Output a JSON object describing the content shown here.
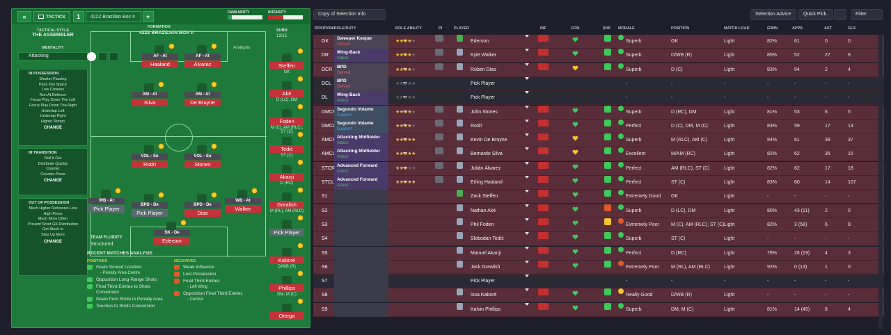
{
  "header": {
    "back": "«",
    "tab": "TACTICS",
    "slot": "1",
    "tactic_name": "4222 Brazilian Box II",
    "add": "+",
    "familiarity": "FAMILIARITY",
    "intensity": "INTENSITY"
  },
  "left": {
    "style_label": "TACTICAL STYLE",
    "style_value": "THE ASSEMBLER",
    "mentality_label": "MENTALITY",
    "mentality_value": "Attacking",
    "in_possession": {
      "title": "IN POSSESSION",
      "items": [
        "Shorter Passing",
        "Pass Into Space",
        "Low Crosses",
        "Run At Defence",
        "Focus Play Down The Left",
        "Focus Play Down The Right",
        "Underlap Left",
        "Underlap Right",
        "Higher Tempo"
      ],
      "change": "CHANGE"
    },
    "in_transition": {
      "title": "IN TRANSITION",
      "items": [
        "Roll It Out",
        "Distribute Quickly",
        "Counter",
        "Counter-Press"
      ],
      "change": "CHANGE"
    },
    "out_of_possession": {
      "title": "OUT OF POSSESSION",
      "items": [
        "Much Higher Defensive Line",
        "High Press",
        "Much More Often",
        "Prevent Short GK Distribution",
        "Get Stuck In",
        "Step Up More"
      ],
      "change": "CHANGE"
    }
  },
  "formation": {
    "label": "FORMATION",
    "name": "4222 BRAZILIAN BOX II",
    "subs_label": "SUBS:",
    "subs_value": "12/15",
    "analysis": "Analysis",
    "fluidity_label": "TEAM FLUIDITY",
    "fluidity_value": "Structured"
  },
  "pitch_players": [
    {
      "role": "AF - At",
      "name": "Haaland"
    },
    {
      "role": "AF - At",
      "name": "Álvarez"
    },
    {
      "role": "AM - At",
      "name": "Silva"
    },
    {
      "role": "AM - At",
      "name": "De Bruyne"
    },
    {
      "role": "VOL - Su",
      "name": "Rodri"
    },
    {
      "role": "VOL - Su",
      "name": "Stones"
    },
    {
      "role": "WB - At",
      "name": "Pick Player"
    },
    {
      "role": "BPD - De",
      "name": "Pick Player"
    },
    {
      "role": "BPD - De",
      "name": "Dias"
    },
    {
      "role": "WB - At",
      "name": "Walker"
    },
    {
      "role": "SK - De",
      "name": "Ederson"
    }
  ],
  "subs": [
    {
      "name": "Steffen",
      "pos": "GK"
    },
    {
      "name": "Aké",
      "pos": "D (LC), DM"
    },
    {
      "name": "Foden",
      "pos": "M (C), AM (RLC), ST (C)"
    },
    {
      "name": "Tedić",
      "pos": "ST (C)"
    },
    {
      "name": "Akanji",
      "pos": "D (RC)"
    },
    {
      "name": "Grealish",
      "pos": "M (RL), AM (RLC)"
    },
    {
      "name": "Pick Player",
      "pos": ""
    },
    {
      "name": "Kaboré",
      "pos": "D/WB (R)"
    },
    {
      "name": "Phillips",
      "pos": "DM, M (C)"
    },
    {
      "name": "Ortega",
      "pos": ""
    }
  ],
  "analysis": {
    "title": "RECENT MATCHES ANALYSIS",
    "positives_label": "POSITIVES",
    "negatives_label": "NEGATIVES",
    "positives": [
      {
        "t": "Goals Scored Location",
        "s": "- Penalty Area Centre"
      },
      {
        "t": "Opposition Long-Range Shots",
        "s": ""
      },
      {
        "t": "Final Third Entries to Shots Conversion",
        "s": ""
      },
      {
        "t": "Goals from Shots in Penalty Area",
        "s": ""
      },
      {
        "t": "Touches to Shots Conversion",
        "s": ""
      }
    ],
    "negatives": [
      {
        "t": "Weak Influence",
        "s": ""
      },
      {
        "t": "Lost Possession",
        "s": ""
      },
      {
        "t": "Final Third Entries",
        "s": "- Left Wing"
      },
      {
        "t": "Opposition Final Third Entries",
        "s": "- Central"
      }
    ]
  },
  "toolbar": {
    "copy": "Copy of Selection Info",
    "advice": "Selection Advice",
    "quick_pick": "Quick Pick",
    "filter": "Filter"
  },
  "columns": {
    "pos": "POSITION/ROLE/DUTY",
    "ability": "ROLE ABILITY",
    "pi": "PI",
    "player": "PLAYER",
    "inf": "INF",
    "con": "CON",
    "shp": "SHP",
    "morale": "MORALE",
    "position": "POSITION",
    "load": "MATCH LOAD",
    "gwin": "GWIN",
    "apps": "APPS",
    "ast": "AST",
    "gls": "GLS"
  },
  "colors": {
    "good": "#3ec95a",
    "ok": "#f2c430",
    "bad": "#e05a2a",
    "red": "#c43030"
  },
  "rows": [
    {
      "code": "GK",
      "role": "Sweeper Keeper",
      "duty": "Defend",
      "dc": "def",
      "stars": 3.5,
      "player": "Ederson",
      "gk": true,
      "con": "good",
      "shp": "good",
      "mor": "good",
      "morale": "Superb",
      "pos": "GK",
      "load": "Light",
      "gwin": "82%",
      "apps": "61",
      "ast": "0",
      "gls": "0"
    },
    {
      "code": "DR",
      "role": "Wing-Back",
      "duty": "Attack",
      "dc": "att",
      "stars": 3.5,
      "player": "Kyle Walker",
      "con": "good",
      "shp": "good",
      "mor": "good",
      "morale": "Superb",
      "pos": "D/WB (R)",
      "load": "Light",
      "gwin": "85%",
      "apps": "52",
      "ast": "27",
      "gls": "9"
    },
    {
      "code": "DCR",
      "role": "BPD",
      "duty": "Defend",
      "dc": "def",
      "stars": 4,
      "player": "Rúben Dias",
      "con": "ok",
      "shp": "good",
      "mor": "good",
      "morale": "Superb",
      "pos": "D (C)",
      "load": "Light",
      "gwin": "83%",
      "apps": "54",
      "ast": "2",
      "gls": "4"
    },
    {
      "code": "DCL",
      "role": "BPD",
      "duty": "Defend",
      "dc": "def",
      "stars": 0,
      "player": "Pick Player",
      "empty": true,
      "morale": "-",
      "pos": "-",
      "load": "-",
      "gwin": "-",
      "apps": "-",
      "ast": "-",
      "gls": "-"
    },
    {
      "code": "DL",
      "role": "Wing-Back",
      "duty": "Attack",
      "dc": "att",
      "stars": 0,
      "player": "Pick Player",
      "empty": true,
      "morale": "-",
      "pos": "-",
      "load": "-",
      "gwin": "-",
      "apps": "-",
      "ast": "-",
      "gls": "-"
    },
    {
      "code": "DMCR",
      "role": "Segundo Volante",
      "duty": "Support",
      "dc": "sup",
      "stars": 3.5,
      "player": "John Stones",
      "con": "good",
      "shp": "good",
      "mor": "good",
      "morale": "Superb",
      "pos": "D (RC), DM",
      "load": "Light",
      "gwin": "81%",
      "apps": "53",
      "ast": "6",
      "gls": "5"
    },
    {
      "code": "DMCL",
      "role": "Segundo Volante",
      "duty": "Support",
      "dc": "sup",
      "stars": 4,
      "player": "Rodri",
      "con": "good",
      "shp": "good",
      "mor": "good",
      "morale": "Perfect",
      "pos": "D (C), DM, M (C)",
      "load": "Light",
      "gwin": "83%",
      "apps": "59",
      "ast": "17",
      "gls": "13"
    },
    {
      "code": "AMCR",
      "role": "Attacking Midfielder",
      "duty": "Attack",
      "dc": "att",
      "stars": 5,
      "player": "Kevin De Bruyne",
      "con": "ok",
      "shp": "good",
      "mor": "good",
      "morale": "Superb",
      "pos": "M (RLC), AM (C)",
      "load": "Light",
      "gwin": "84%",
      "apps": "61",
      "ast": "39",
      "gls": "37"
    },
    {
      "code": "AMCL",
      "role": "Attacking Midfielder",
      "duty": "Attack",
      "dc": "att",
      "stars": 5,
      "player": "Bernardo Silva",
      "con": "ok",
      "shp": "good",
      "mor": "good",
      "morale": "Excellent",
      "pos": "M/AM (RC)",
      "load": "Light",
      "gwin": "82%",
      "apps": "62",
      "ast": "35",
      "gls": "15"
    },
    {
      "code": "STCR",
      "role": "Advanced Forward",
      "duty": "Attack",
      "dc": "att",
      "stars": 3,
      "player": "Julián Álvarez",
      "con": "good",
      "shp": "good",
      "mor": "good",
      "morale": "Perfect",
      "pos": "AM (RLC), ST (C)",
      "load": "Light",
      "gwin": "82%",
      "apps": "62",
      "ast": "17",
      "gls": "18"
    },
    {
      "code": "STCL",
      "role": "Advanced Forward",
      "duty": "Attack",
      "dc": "att",
      "stars": 5,
      "player": "Erling Haaland",
      "con": "good",
      "shp": "good",
      "mor": "good",
      "morale": "Perfect",
      "pos": "ST (C)",
      "load": "Light",
      "gwin": "83%",
      "apps": "60",
      "ast": "14",
      "gls": "107"
    },
    {
      "code": "S1",
      "player": "Zack Steffen",
      "gk": true,
      "con": "good",
      "shp": "good",
      "mor": "good",
      "morale": "Extremely Good",
      "pos": "GK",
      "load": "Light",
      "gwin": "-",
      "apps": "-",
      "ast": "-",
      "gls": "-"
    },
    {
      "code": "S2",
      "player": "Nathan Aké",
      "con": "good",
      "shp": "bad",
      "mor": "good",
      "morale": "Superb",
      "pos": "D (LC), DM",
      "load": "Light",
      "gwin": "80%",
      "apps": "43 (11)",
      "ast": "2",
      "gls": "0"
    },
    {
      "code": "S3",
      "player": "Phil Foden",
      "con": "good",
      "shp": "ok",
      "mor": "bad",
      "morale": "Extremely Poor",
      "pos": "M (C), AM (RLC), ST (C)",
      "load": "Light",
      "gwin": "82%",
      "apps": "3 (58)",
      "ast": "6",
      "gls": "9"
    },
    {
      "code": "S4",
      "player": "Slobodan Tedić",
      "con": "good",
      "shp": "good",
      "mor": "good",
      "morale": "Superb",
      "pos": "ST (C)",
      "load": "Light",
      "gwin": "-",
      "apps": "-",
      "ast": "-",
      "gls": "-"
    },
    {
      "code": "S5",
      "player": "Manuel Akanji",
      "con": "good",
      "shp": "good",
      "mor": "good",
      "morale": "Perfect",
      "pos": "D (RC)",
      "load": "Light",
      "gwin": "79%",
      "apps": "28 (19)",
      "ast": "4",
      "gls": "3"
    },
    {
      "code": "S6",
      "player": "Jack Grealish",
      "con": "good",
      "shp": "good",
      "mor": "bad",
      "morale": "Extremely Poor",
      "pos": "M (RL), AM (RLC)",
      "load": "Light",
      "gwin": "92%",
      "apps": "0 (13)",
      "ast": "1",
      "gls": "0"
    },
    {
      "code": "S7",
      "player": "Pick Player",
      "empty": true,
      "morale": "-",
      "pos": "-",
      "load": "-",
      "gwin": "-",
      "apps": "-",
      "ast": "-",
      "gls": "-"
    },
    {
      "code": "S8",
      "player": "Issa Kaboré",
      "con": "good",
      "shp": "good",
      "mor": "ok",
      "morale": "Really Good",
      "pos": "D/WB (R)",
      "load": "Light",
      "gwin": "-",
      "apps": "-",
      "ast": "-",
      "gls": "-"
    },
    {
      "code": "S9",
      "player": "Kalvin Phillips",
      "con": "good",
      "shp": "good",
      "mor": "good",
      "morale": "Superb",
      "pos": "DM, M (C)",
      "load": "Light",
      "gwin": "81%",
      "apps": "14 (45)",
      "ast": "8",
      "gls": "4"
    }
  ]
}
